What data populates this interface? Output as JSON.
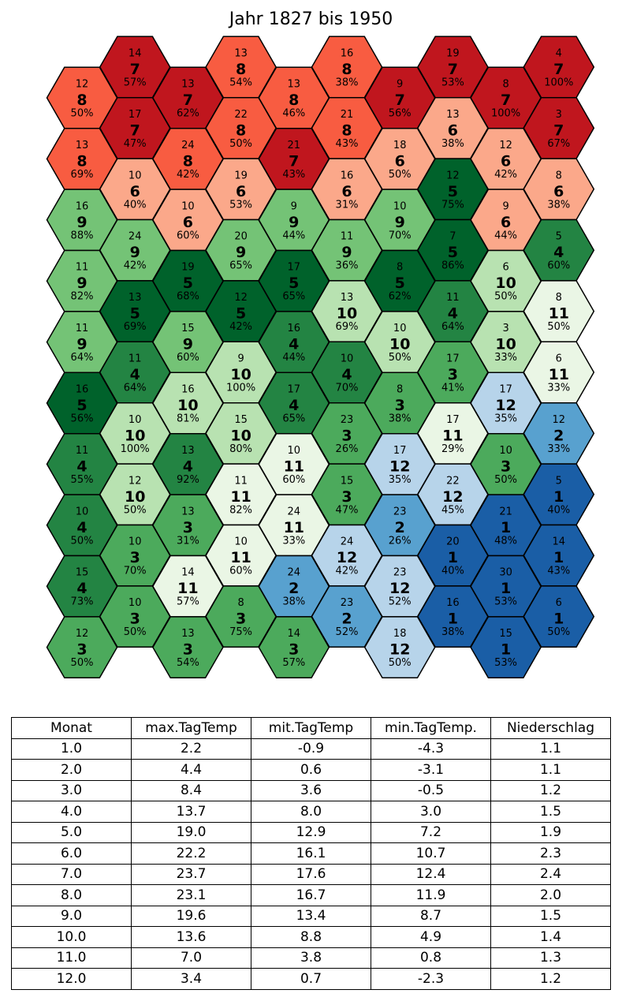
{
  "title": "Jahr 1827 bis 1950",
  "month_colors": {
    "1": "#1a5ea6",
    "2": "#58a1cf",
    "3": "#4caa5c",
    "4": "#238443",
    "5": "#00622b",
    "6": "#fba88a",
    "7": "#c0161e",
    "8": "#f85c41",
    "9": "#74c376",
    "10": "#b8e2b1",
    "11": "#eaf6e5",
    "12": "#b7d4ea"
  },
  "chart_data": {
    "type": "heatmap",
    "title": "Jahr 1827 bis 1950",
    "layout": "hexagonal grid, 10 columns, odd columns shifted up by half a cell",
    "cell_fields": [
      "count (top)",
      "month (center, bold)",
      "percent (bottom)"
    ],
    "columns": [
      [
        [
          "12",
          "8",
          "50%"
        ],
        [
          "13",
          "8",
          "69%"
        ],
        [
          "16",
          "9",
          "88%"
        ],
        [
          "11",
          "9",
          "82%"
        ],
        [
          "11",
          "9",
          "64%"
        ],
        [
          "16",
          "5",
          "56%"
        ],
        [
          "11",
          "4",
          "55%"
        ],
        [
          "10",
          "4",
          "50%"
        ],
        [
          "15",
          "4",
          "73%"
        ],
        [
          "12",
          "3",
          "50%"
        ]
      ],
      [
        [
          "14",
          "7",
          "57%"
        ],
        [
          "17",
          "7",
          "47%"
        ],
        [
          "10",
          "6",
          "40%"
        ],
        [
          "24",
          "9",
          "42%"
        ],
        [
          "13",
          "5",
          "69%"
        ],
        [
          "11",
          "4",
          "64%"
        ],
        [
          "10",
          "10",
          "100%"
        ],
        [
          "12",
          "10",
          "50%"
        ],
        [
          "10",
          "3",
          "70%"
        ],
        [
          "10",
          "3",
          "50%"
        ]
      ],
      [
        [
          "13",
          "7",
          "62%"
        ],
        [
          "24",
          "8",
          "42%"
        ],
        [
          "10",
          "6",
          "60%"
        ],
        [
          "19",
          "5",
          "68%"
        ],
        [
          "15",
          "9",
          "60%"
        ],
        [
          "16",
          "10",
          "81%"
        ],
        [
          "13",
          "4",
          "92%"
        ],
        [
          "13",
          "3",
          "31%"
        ],
        [
          "14",
          "11",
          "57%"
        ],
        [
          "13",
          "3",
          "54%"
        ]
      ],
      [
        [
          "13",
          "8",
          "54%"
        ],
        [
          "22",
          "8",
          "50%"
        ],
        [
          "19",
          "6",
          "53%"
        ],
        [
          "20",
          "9",
          "65%"
        ],
        [
          "12",
          "5",
          "42%"
        ],
        [
          "9",
          "10",
          "100%"
        ],
        [
          "15",
          "10",
          "80%"
        ],
        [
          "11",
          "11",
          "82%"
        ],
        [
          "10",
          "11",
          "60%"
        ],
        [
          "8",
          "3",
          "75%"
        ]
      ],
      [
        [
          "13",
          "8",
          "46%"
        ],
        [
          "21",
          "7",
          "43%"
        ],
        [
          "9",
          "9",
          "44%"
        ],
        [
          "17",
          "5",
          "65%"
        ],
        [
          "16",
          "4",
          "44%"
        ],
        [
          "17",
          "4",
          "65%"
        ],
        [
          "10",
          "11",
          "60%"
        ],
        [
          "24",
          "11",
          "33%"
        ],
        [
          "24",
          "2",
          "38%"
        ],
        [
          "14",
          "3",
          "57%"
        ]
      ],
      [
        [
          "16",
          "8",
          "38%"
        ],
        [
          "21",
          "8",
          "43%"
        ],
        [
          "16",
          "6",
          "31%"
        ],
        [
          "11",
          "9",
          "36%"
        ],
        [
          "13",
          "10",
          "69%"
        ],
        [
          "10",
          "4",
          "70%"
        ],
        [
          "23",
          "3",
          "26%"
        ],
        [
          "15",
          "3",
          "47%"
        ],
        [
          "24",
          "12",
          "42%"
        ],
        [
          "23",
          "2",
          "52%"
        ]
      ],
      [
        [
          "9",
          "7",
          "56%"
        ],
        [
          "18",
          "6",
          "50%"
        ],
        [
          "10",
          "9",
          "70%"
        ],
        [
          "8",
          "5",
          "62%"
        ],
        [
          "10",
          "10",
          "50%"
        ],
        [
          "8",
          "3",
          "38%"
        ],
        [
          "17",
          "12",
          "35%"
        ],
        [
          "23",
          "2",
          "26%"
        ],
        [
          "23",
          "12",
          "52%"
        ],
        [
          "18",
          "12",
          "50%"
        ]
      ],
      [
        [
          "19",
          "7",
          "53%"
        ],
        [
          "13",
          "6",
          "38%"
        ],
        [
          "12",
          "5",
          "75%"
        ],
        [
          "7",
          "5",
          "86%"
        ],
        [
          "11",
          "4",
          "64%"
        ],
        [
          "17",
          "3",
          "41%"
        ],
        [
          "17",
          "11",
          "29%"
        ],
        [
          "22",
          "12",
          "45%"
        ],
        [
          "20",
          "1",
          "40%"
        ],
        [
          "16",
          "1",
          "38%"
        ]
      ],
      [
        [
          "8",
          "7",
          "100%"
        ],
        [
          "12",
          "6",
          "42%"
        ],
        [
          "9",
          "6",
          "44%"
        ],
        [
          "6",
          "10",
          "50%"
        ],
        [
          "3",
          "10",
          "33%"
        ],
        [
          "17",
          "12",
          "35%"
        ],
        [
          "10",
          "3",
          "50%"
        ],
        [
          "21",
          "1",
          "48%"
        ],
        [
          "30",
          "1",
          "53%"
        ],
        [
          "15",
          "1",
          "53%"
        ]
      ],
      [
        [
          "4",
          "7",
          "100%"
        ],
        [
          "3",
          "7",
          "67%"
        ],
        [
          "8",
          "6",
          "38%"
        ],
        [
          "5",
          "4",
          "60%"
        ],
        [
          "8",
          "11",
          "50%"
        ],
        [
          "6",
          "11",
          "33%"
        ],
        [
          "12",
          "2",
          "33%"
        ],
        [
          "5",
          "1",
          "40%"
        ],
        [
          "14",
          "1",
          "43%"
        ],
        [
          "6",
          "1",
          "50%"
        ]
      ]
    ]
  },
  "table": {
    "headers": [
      "Monat",
      "max.TagTemp",
      "mit.TagTemp",
      "min.TagTemp.",
      "Niederschlag"
    ],
    "rows": [
      [
        "1.0",
        "2.2",
        "-0.9",
        "-4.3",
        "1.1"
      ],
      [
        "2.0",
        "4.4",
        "0.6",
        "-3.1",
        "1.1"
      ],
      [
        "3.0",
        "8.4",
        "3.6",
        "-0.5",
        "1.2"
      ],
      [
        "4.0",
        "13.7",
        "8.0",
        "3.0",
        "1.5"
      ],
      [
        "5.0",
        "19.0",
        "12.9",
        "7.2",
        "1.9"
      ],
      [
        "6.0",
        "22.2",
        "16.1",
        "10.7",
        "2.3"
      ],
      [
        "7.0",
        "23.7",
        "17.6",
        "12.4",
        "2.4"
      ],
      [
        "8.0",
        "23.1",
        "16.7",
        "11.9",
        "2.0"
      ],
      [
        "9.0",
        "19.6",
        "13.4",
        "8.7",
        "1.5"
      ],
      [
        "10.0",
        "13.6",
        "8.8",
        "4.9",
        "1.4"
      ],
      [
        "11.0",
        "7.0",
        "3.8",
        "0.8",
        "1.3"
      ],
      [
        "12.0",
        "3.4",
        "0.7",
        "-2.3",
        "1.2"
      ]
    ]
  }
}
